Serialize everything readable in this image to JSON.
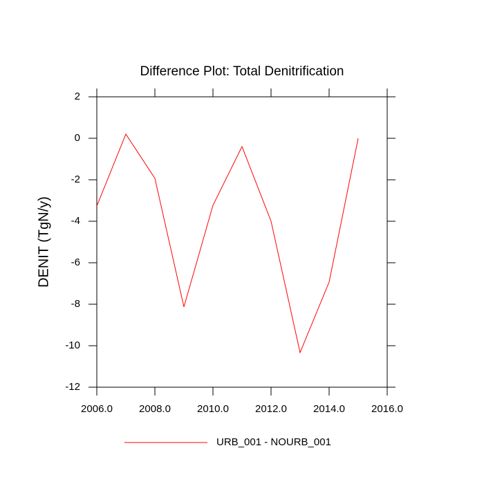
{
  "chart_data": {
    "type": "line",
    "title": "Difference Plot: Total Denitrification",
    "y_label": "DENIT  (TgN/y)",
    "x": [
      2006,
      2007,
      2008,
      2009,
      2010,
      2011,
      2012,
      2013,
      2014,
      2015
    ],
    "series": [
      {
        "name": "URB_001 - NOURB_001",
        "color": "#ff0000",
        "values": [
          -3.27,
          0.2,
          -1.93,
          -8.13,
          -3.23,
          -0.4,
          -4.0,
          -10.33,
          -6.93,
          0.0
        ]
      }
    ],
    "xlim": [
      2006,
      2016
    ],
    "xticks": [
      {
        "value": 2006,
        "label": "2006.0"
      },
      {
        "value": 2008,
        "label": "2008.0"
      },
      {
        "value": 2010,
        "label": "2010.0"
      },
      {
        "value": 2012,
        "label": "2012.0"
      },
      {
        "value": 2014,
        "label": "2014.0"
      },
      {
        "value": 2016,
        "label": "2016.0"
      }
    ],
    "ylim": [
      -12,
      2
    ],
    "yticks": [
      2,
      0,
      -2,
      -4,
      -6,
      -8,
      -10,
      -12
    ]
  }
}
